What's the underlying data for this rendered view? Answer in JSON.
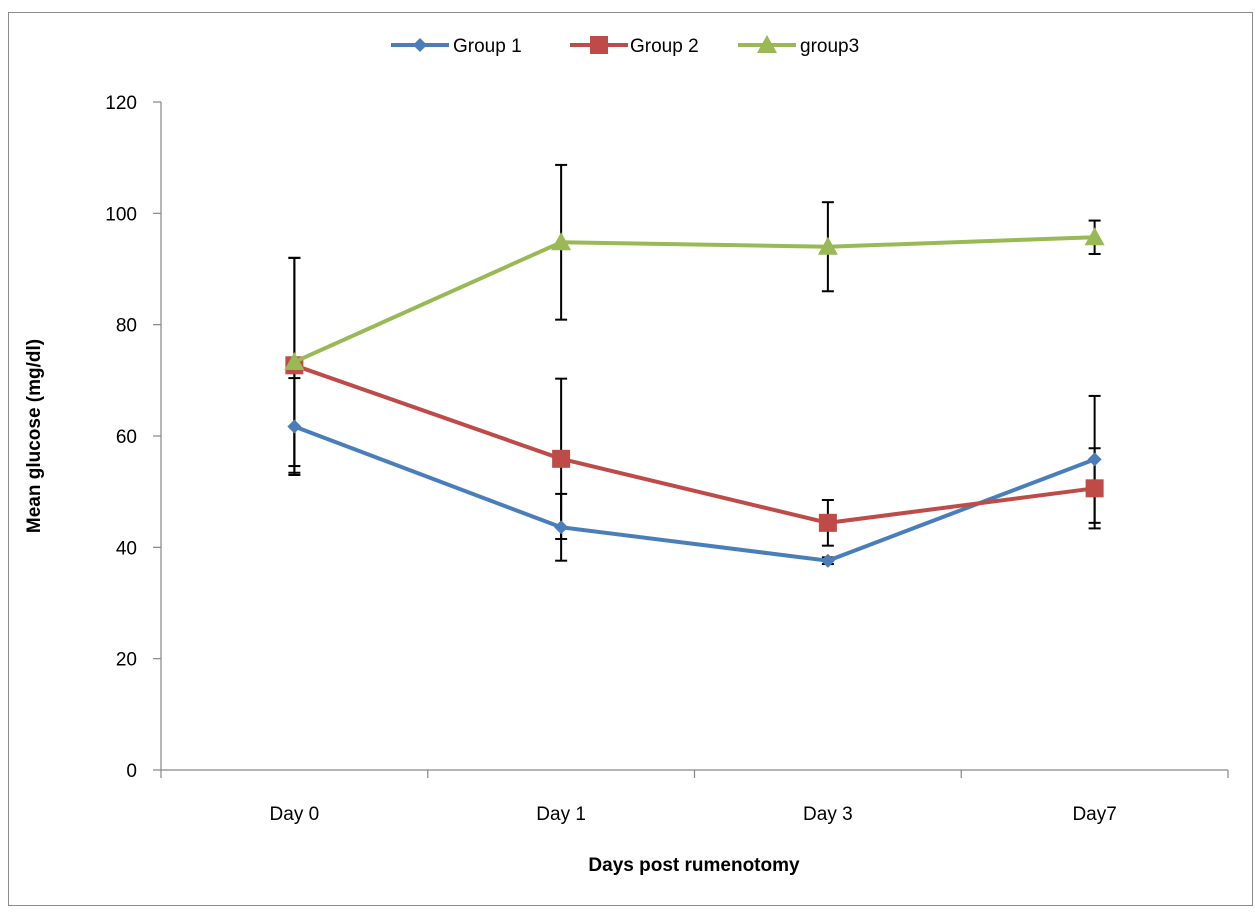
{
  "chart_data": {
    "type": "line",
    "title": "",
    "xlabel": "Days post rumenotomy",
    "ylabel": "Mean glucose (mg/dl)",
    "categories": [
      "Day 0",
      "Day 1",
      "Day 3",
      "Day7"
    ],
    "ylim": [
      0,
      120
    ],
    "yticks": [
      0,
      20,
      40,
      60,
      80,
      100,
      120
    ],
    "y_tick_labels": [
      "0",
      "20",
      "40",
      "60",
      "80",
      "100",
      "120"
    ],
    "grid": false,
    "legend_position": "top",
    "series": [
      {
        "name": "Group 1",
        "color": "#4A7EBB",
        "marker": "diamond",
        "values": [
          61.7,
          43.6,
          37.6,
          55.8
        ],
        "error": [
          8.7,
          6.0,
          0.6,
          11.4
        ]
      },
      {
        "name": "Group 2",
        "color": "#BE4B48",
        "marker": "square",
        "values": [
          72.7,
          55.9,
          44.4,
          50.6
        ],
        "error": [
          19.3,
          14.4,
          4.1,
          7.2
        ]
      },
      {
        "name": "group3",
        "color": "#98B954",
        "marker": "triangle",
        "values": [
          73.3,
          94.8,
          94.0,
          95.7
        ],
        "error": [
          18.7,
          13.9,
          8.0,
          3.0
        ]
      }
    ]
  }
}
